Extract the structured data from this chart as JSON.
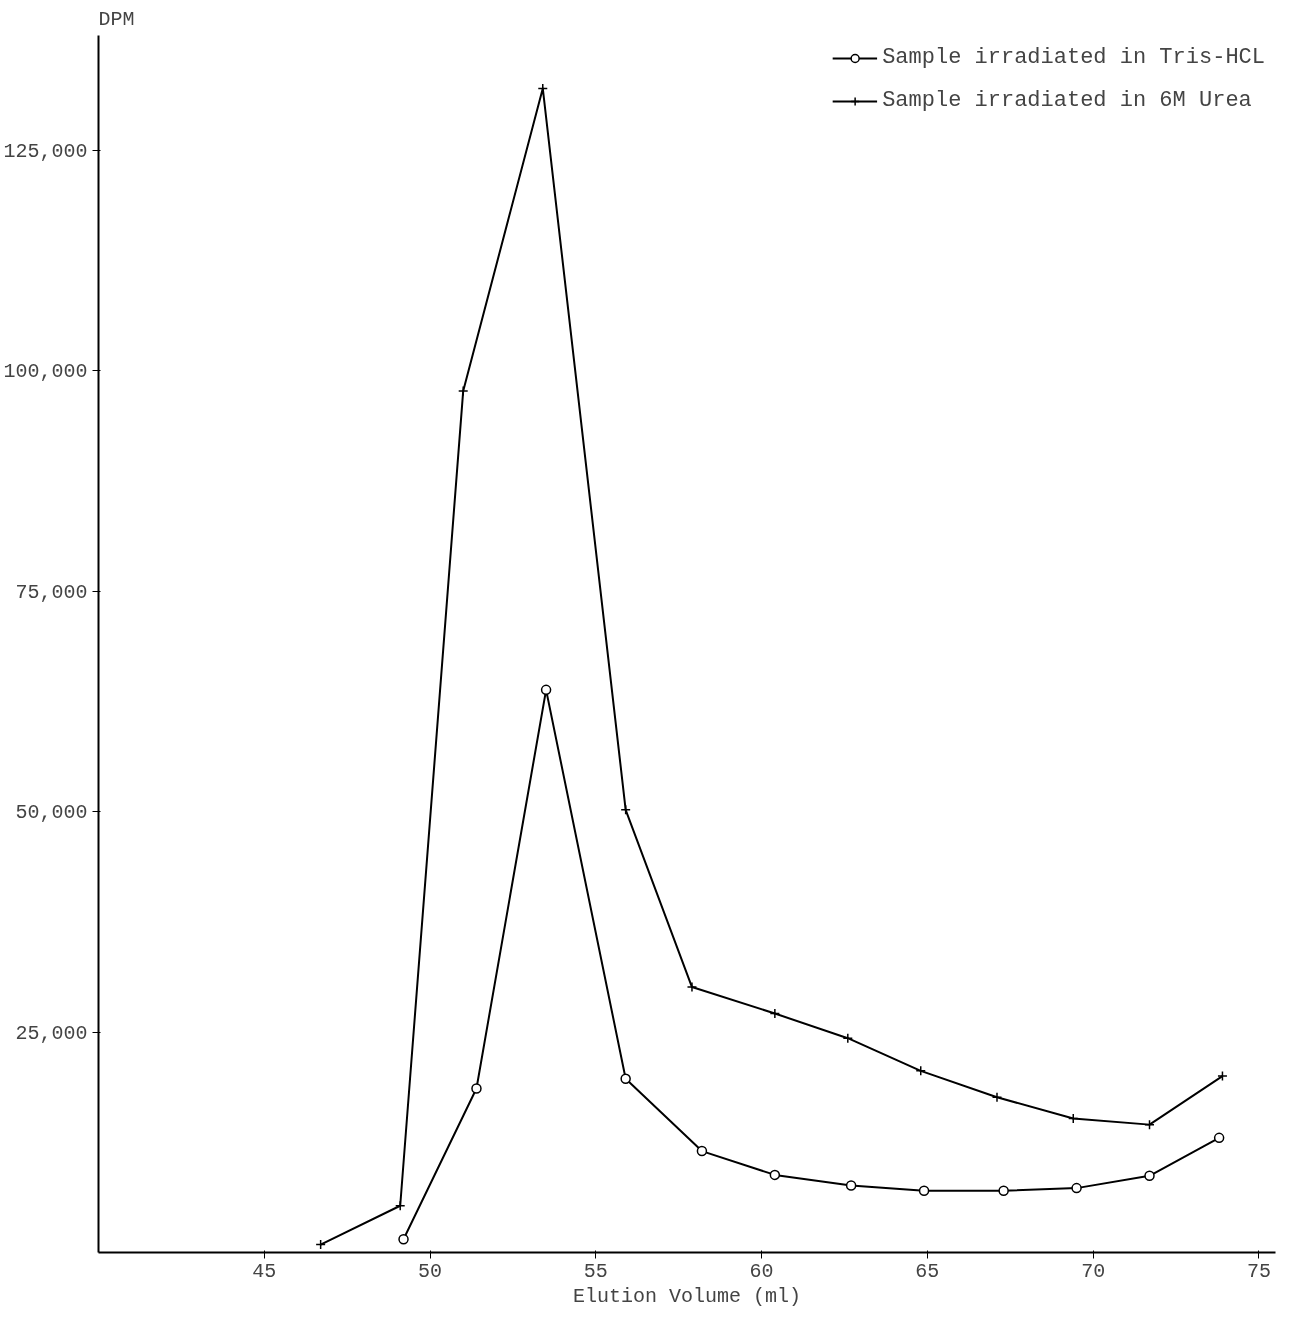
{
  "chart_data": {
    "type": "line",
    "xlabel": "Elution Volume (ml)",
    "ylabel": "DPM",
    "xlim": [
      40,
      75.5
    ],
    "xticks": [
      45,
      50,
      55,
      60,
      65,
      70,
      75
    ],
    "ylim": [
      0,
      138000
    ],
    "yticks": [
      {
        "value": 25000,
        "label": "25,000"
      },
      {
        "value": 50000,
        "label": "50,000"
      },
      {
        "value": 75000,
        "label": "75,000"
      },
      {
        "value": 100000,
        "label": "100,000"
      },
      {
        "value": 125000,
        "label": "125,000"
      }
    ],
    "series": [
      {
        "name": "Sample irradiated in Tris-HCL",
        "color": "#000000",
        "marker": "circle",
        "x": [
          49.2,
          51.4,
          53.5,
          55.9,
          58.2,
          60.4,
          62.7,
          64.9,
          67.3,
          69.5,
          71.7,
          73.8
        ],
        "values": [
          1500,
          18600,
          63800,
          19700,
          11500,
          8800,
          7600,
          7000,
          7000,
          7300,
          8700,
          13000
        ]
      },
      {
        "name": "Sample irradiated in 6M Urea",
        "color": "#000000",
        "marker": "cross",
        "x": [
          46.7,
          49.1,
          51.0,
          53.4,
          55.9,
          57.9,
          60.4,
          62.6,
          64.8,
          67.1,
          69.4,
          71.7,
          73.9
        ],
        "values": [
          900,
          5300,
          97700,
          132000,
          50200,
          30100,
          27100,
          24300,
          20600,
          17600,
          15200,
          14500,
          20000
        ]
      }
    ],
    "legend": "top right",
    "grid": false,
    "line_style": "solid"
  }
}
